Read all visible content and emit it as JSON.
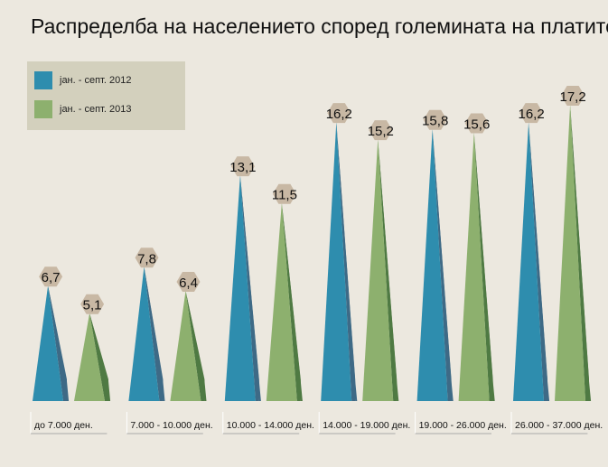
{
  "chart_data": {
    "type": "bar",
    "title": "Распределба на населението според големината на платите (",
    "categories": [
      "до 7.000 ден.",
      "7.000 - 10.000 ден.",
      "10.000 - 14.000 ден.",
      "14.000 - 19.000 ден.",
      "19.000 - 26.000 ден.",
      "26.000 - 37.000 ден."
    ],
    "series": [
      {
        "name": "јан. - септ. 2012",
        "color": "#2e8dae",
        "shade": "#3e6a86",
        "values": [
          6.7,
          7.8,
          13.1,
          16.2,
          15.8,
          16.2
        ],
        "labels": [
          "6,7",
          "7,8",
          "13,1",
          "16,2",
          "15,8",
          "16,2"
        ]
      },
      {
        "name": "јан. - септ. 2013",
        "color": "#8db06e",
        "shade": "#4f7a43",
        "values": [
          5.1,
          6.4,
          11.5,
          15.2,
          15.6,
          17.2
        ],
        "labels": [
          "5,1",
          "6,4",
          "11,5",
          "15,2",
          "15,6",
          "17,2"
        ]
      }
    ],
    "legend_position": "top-left",
    "grid": false,
    "ylim": [
      0,
      17.2
    ],
    "label_badge_color": "#c8b8a4"
  }
}
